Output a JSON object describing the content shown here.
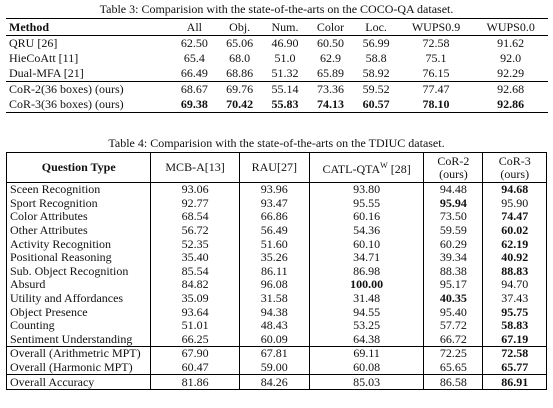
{
  "table3": {
    "caption": "Table 3: Comparision with the state-of-the-arts on the COCO-QA dataset.",
    "header": [
      "Method",
      "All",
      "Obj.",
      "Num.",
      "Color",
      "Loc.",
      "WUPS0.9",
      "WUPS0.0"
    ],
    "rows": [
      [
        "QRU [26]",
        "62.50",
        "65.06",
        "46.90",
        "60.50",
        "56.99",
        "72.58",
        "91.62"
      ],
      [
        "HieCoAtt [11]",
        "65.4",
        "68.0",
        "51.0",
        "62.9",
        "58.8",
        "75.1",
        "92.0"
      ],
      [
        "Dual-MFA [21]",
        "66.49",
        "68.86",
        "51.32",
        "65.89",
        "58.92",
        "76.15",
        "92.29"
      ],
      [
        "CoR-2(36 boxes) (ours)",
        "68.67",
        "69.76",
        "55.14",
        "73.36",
        "59.52",
        "77.47",
        "92.68"
      ],
      [
        "CoR-3(36 boxes) (ours)",
        "69.38",
        "70.42",
        "55.83",
        "74.13",
        "60.57",
        "78.10",
        "92.86"
      ]
    ]
  },
  "table4": {
    "caption": "Table 4: Comparision with the state-of-the-arts on the TDIUC dataset.",
    "header": [
      [
        "Question Type"
      ],
      [
        "MCB-A[13]"
      ],
      [
        "RAU[27]"
      ],
      [
        "CATL-QTA",
        "W",
        " [28]"
      ],
      [
        "CoR-2",
        "(ours)"
      ],
      [
        "CoR-3",
        "(ours)"
      ]
    ],
    "rows": [
      [
        "Sceen Recognition",
        "93.06",
        "93.96",
        "93.80",
        "94.48",
        "94.68"
      ],
      [
        "Sport Recognition",
        "92.77",
        "93.47",
        "95.55",
        "95.94",
        "95.90"
      ],
      [
        "Color Attributes",
        "68.54",
        "66.86",
        "60.16",
        "73.50",
        "74.47"
      ],
      [
        "Other Attributes",
        "56.72",
        "56.49",
        "54.36",
        "59.59",
        "60.02"
      ],
      [
        "Activity Recognition",
        "52.35",
        "51.60",
        "60.10",
        "60.29",
        "62.19"
      ],
      [
        "Positional Reasoning",
        "35.40",
        "35.26",
        "34.71",
        "39.34",
        "40.92"
      ],
      [
        "Sub. Object Recognition",
        "85.54",
        "86.11",
        "86.98",
        "88.38",
        "88.83"
      ],
      [
        "Absurd",
        "84.82",
        "96.08",
        "100.00",
        "95.17",
        "94.70"
      ],
      [
        "Utility and Affordances",
        "35.09",
        "31.58",
        "31.48",
        "40.35",
        "37.43"
      ],
      [
        "Object Presence",
        "93.64",
        "94.38",
        "94.55",
        "95.40",
        "95.75"
      ],
      [
        "Counting",
        "51.01",
        "48.43",
        "53.25",
        "57.72",
        "58.83"
      ],
      [
        "Sentiment Understanding",
        "66.25",
        "60.09",
        "64.38",
        "66.72",
        "67.19"
      ],
      [
        "Overall (Arithmetric MPT)",
        "67.90",
        "67.81",
        "69.11",
        "72.25",
        "72.58"
      ],
      [
        "Overall (Harmonic MPT)",
        "60.47",
        "59.00",
        "60.08",
        "65.65",
        "65.77"
      ],
      [
        "Overall Accuracy",
        "81.86",
        "84.26",
        "85.03",
        "86.58",
        "86.91"
      ]
    ]
  }
}
